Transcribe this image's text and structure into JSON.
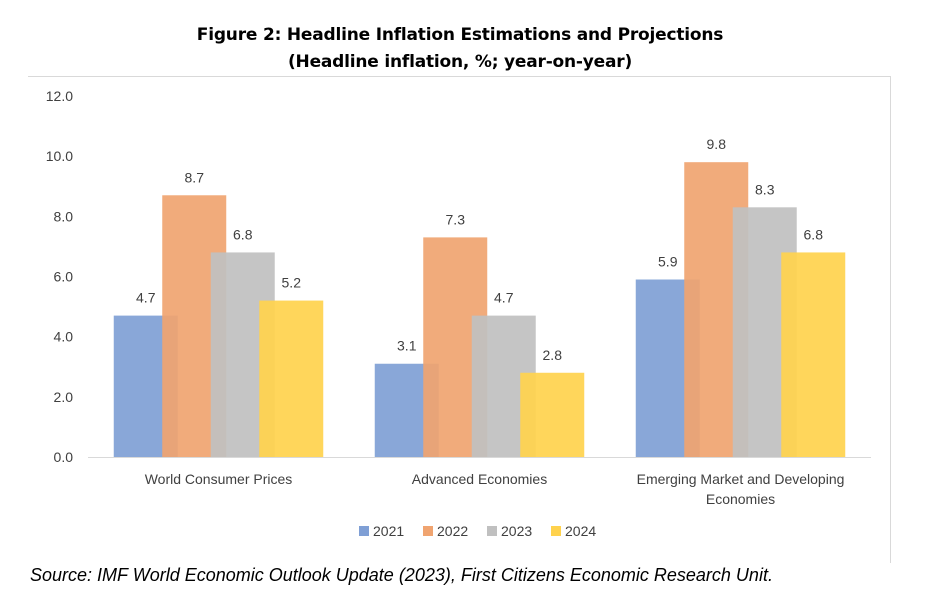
{
  "chart_data": {
    "type": "bar",
    "title": "Figure 2: Headline Inflation Estimations and Projections",
    "subtitle": "(Headline inflation, %; year-on-year)",
    "categories": [
      "World Consumer Prices",
      "Advanced Economies",
      "Emerging Market and Developing Economies"
    ],
    "series": [
      {
        "name": "2021",
        "values": [
          4.7,
          3.1,
          5.9
        ],
        "color": "#7f9fd5"
      },
      {
        "name": "2022",
        "values": [
          8.7,
          7.3,
          9.8
        ],
        "color": "#f0a470"
      },
      {
        "name": "2023",
        "values": [
          6.8,
          4.7,
          8.3
        ],
        "color": "#c0c0c0"
      },
      {
        "name": "2024",
        "values": [
          5.2,
          2.8,
          6.8
        ],
        "color": "#ffd24d"
      }
    ],
    "yticks": [
      "0.0",
      "2.0",
      "4.0",
      "6.0",
      "8.0",
      "10.0",
      "12.0"
    ],
    "ylim": [
      0,
      12
    ],
    "xlabel": "",
    "ylabel": "",
    "legend": "bottom",
    "grid": false
  },
  "source": "Source: IMF World Economic Outlook Update (2023), First Citizens Economic Research Unit."
}
